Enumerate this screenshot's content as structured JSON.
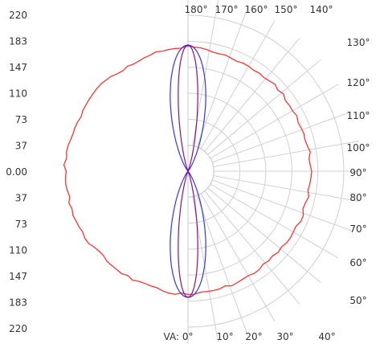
{
  "chart_data": {
    "type": "polar",
    "title": "",
    "radial_axis": {
      "ticks": [
        "220",
        "183",
        "147",
        "110",
        "73",
        "37",
        "0.00",
        "37",
        "73",
        "110",
        "147",
        "183",
        "220"
      ],
      "range": [
        0,
        220
      ]
    },
    "angle_labels_top": [
      "180°",
      "170°",
      "160°",
      "150°",
      "140°"
    ],
    "angle_labels_right": [
      "130°",
      "120°",
      "110°",
      "100°",
      "90°",
      "80°",
      "70°",
      "60°",
      "50°"
    ],
    "angle_labels_bottom": [
      "VA: 0°",
      "10°",
      "20°",
      "30°",
      "40°"
    ],
    "grid": true,
    "series": [
      {
        "color": "#ff3333",
        "shape": "near-uniform",
        "r_mean": 172,
        "values_by_angle": [
          {
            "angle": 0,
            "r": 174
          },
          {
            "angle": 15,
            "r": 172
          },
          {
            "angle": 30,
            "r": 171
          },
          {
            "angle": 45,
            "r": 170
          },
          {
            "angle": 60,
            "r": 173
          },
          {
            "angle": 75,
            "r": 172
          },
          {
            "angle": 90,
            "r": 174
          },
          {
            "angle": 105,
            "r": 172
          },
          {
            "angle": 120,
            "r": 171
          },
          {
            "angle": 135,
            "r": 172
          },
          {
            "angle": 150,
            "r": 170
          },
          {
            "angle": 165,
            "r": 173
          },
          {
            "angle": 180,
            "r": 175
          }
        ]
      },
      {
        "color": "#3333ff",
        "shape": "narrow lobes along 0°–180° axis",
        "peak_r": 178,
        "peak_angle_offset": 0
      },
      {
        "color": "#881188",
        "shape": "narrow lobes along 0°–180° axis",
        "peak_r": 178,
        "peak_angle_offset": 0
      }
    ]
  }
}
